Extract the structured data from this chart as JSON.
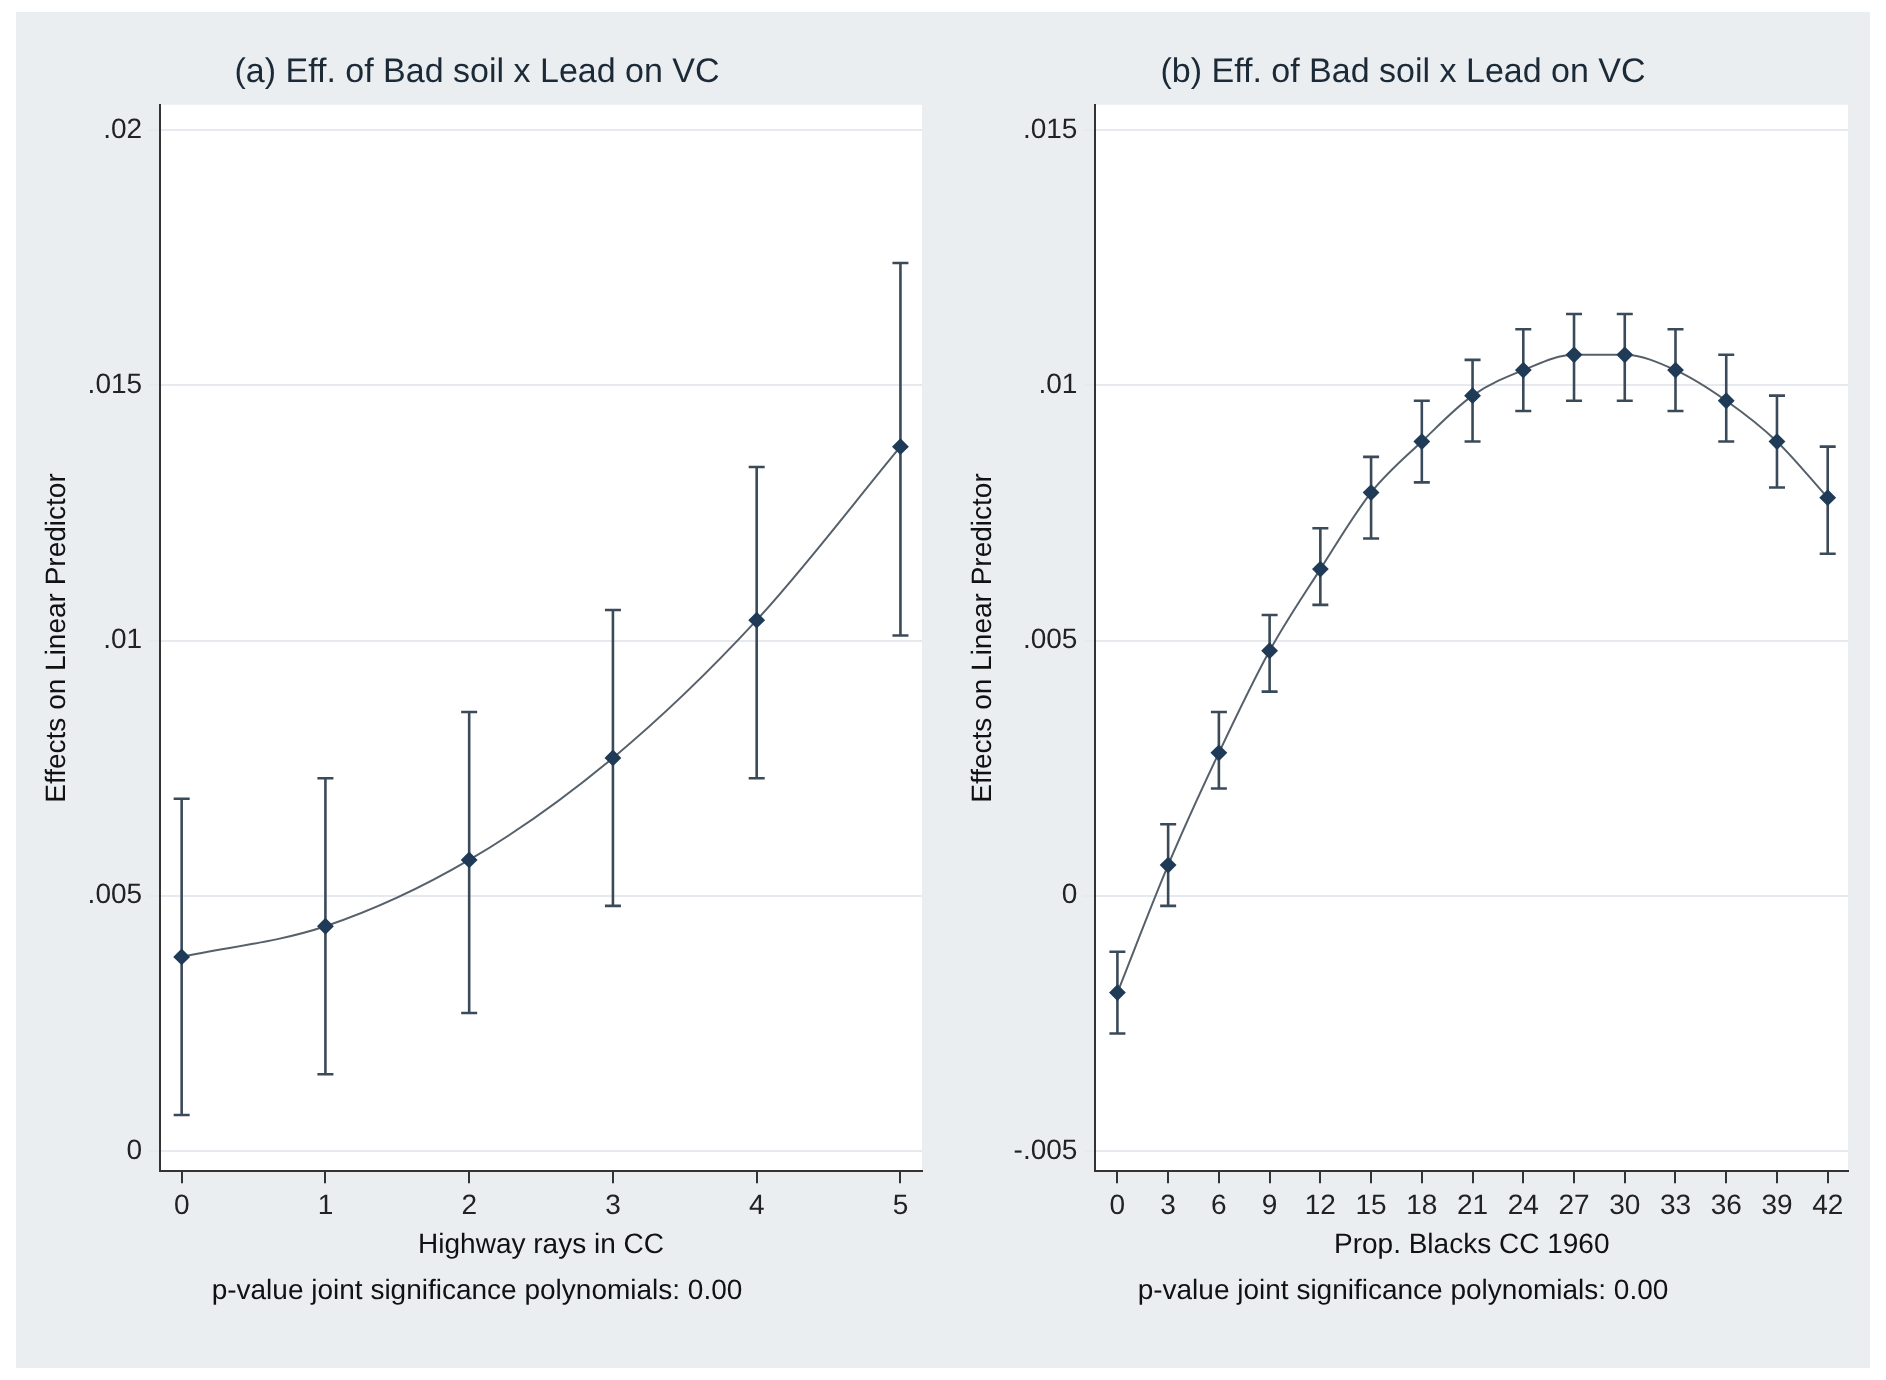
{
  "chart_data": [
    {
      "type": "line",
      "title": "(a) Eff. of Bad soil x Lead on VC",
      "xlabel": "Highway rays in CC",
      "ylabel": "Effects on Linear Predictor",
      "annotations": [
        "p-value joint significance polynomials: 0.00"
      ],
      "x": [
        0,
        1,
        2,
        3,
        4,
        5
      ],
      "xlim": [
        -0.15,
        5.15
      ],
      "xticks": [
        0,
        1,
        2,
        3,
        4,
        5
      ],
      "ylim": [
        -0.0004,
        0.0205
      ],
      "yticks": [
        {
          "value": 0,
          "label": "0"
        },
        {
          "value": 0.005,
          "label": ".005"
        },
        {
          "value": 0.01,
          "label": ".01"
        },
        {
          "value": 0.015,
          "label": ".015"
        },
        {
          "value": 0.02,
          "label": ".02"
        }
      ],
      "grid": "y",
      "marker": "diamond",
      "line_style": "solid",
      "series": [
        {
          "color": "#1f3b57",
          "values": [
            0.0038,
            0.0044,
            0.0057,
            0.0077,
            0.0104,
            0.0138
          ],
          "errors": [
            [
              0.0007,
              0.0069
            ],
            [
              0.0015,
              0.0073
            ],
            [
              0.0027,
              0.0086
            ],
            [
              0.0048,
              0.0106
            ],
            [
              0.0073,
              0.0134
            ],
            [
              0.0101,
              0.0174
            ]
          ]
        }
      ]
    },
    {
      "type": "line",
      "title": "(b) Eff. of Bad soil x Lead on VC",
      "xlabel": "Prop. Blacks CC 1960",
      "ylabel": "Effects on Linear Predictor",
      "annotations": [
        "p-value joint significance polynomials: 0.00"
      ],
      "x": [
        0,
        3,
        6,
        9,
        12,
        15,
        18,
        21,
        24,
        27,
        30,
        33,
        36,
        39,
        42
      ],
      "xlim": [
        -1.3,
        43.2
      ],
      "xticks": [
        0,
        3,
        6,
        9,
        12,
        15,
        18,
        21,
        24,
        27,
        30,
        33,
        36,
        39,
        42
      ],
      "ylim": [
        -0.0054,
        0.0155
      ],
      "yticks": [
        {
          "value": -0.005,
          "label": "-.005"
        },
        {
          "value": 0,
          "label": "0"
        },
        {
          "value": 0.005,
          "label": ".005"
        },
        {
          "value": 0.01,
          "label": ".01"
        },
        {
          "value": 0.015,
          "label": ".015"
        }
      ],
      "grid": "y",
      "marker": "diamond",
      "line_style": "solid",
      "series": [
        {
          "color": "#1f3b57",
          "values": [
            -0.0019,
            0.0006,
            0.0028,
            0.0048,
            0.0064,
            0.0079,
            0.0089,
            0.0098,
            0.0103,
            0.0106,
            0.0106,
            0.0103,
            0.0097,
            0.0089,
            0.0078
          ],
          "errors": [
            [
              -0.0027,
              -0.0011
            ],
            [
              -0.0002,
              0.0014
            ],
            [
              0.0021,
              0.0036
            ],
            [
              0.004,
              0.0055
            ],
            [
              0.0057,
              0.0072
            ],
            [
              0.007,
              0.0086
            ],
            [
              0.0081,
              0.0097
            ],
            [
              0.0089,
              0.0105
            ],
            [
              0.0095,
              0.0111
            ],
            [
              0.0097,
              0.0114
            ],
            [
              0.0097,
              0.0114
            ],
            [
              0.0095,
              0.0111
            ],
            [
              0.0089,
              0.0106
            ],
            [
              0.008,
              0.0098
            ],
            [
              0.0067,
              0.0088
            ]
          ]
        }
      ]
    }
  ]
}
